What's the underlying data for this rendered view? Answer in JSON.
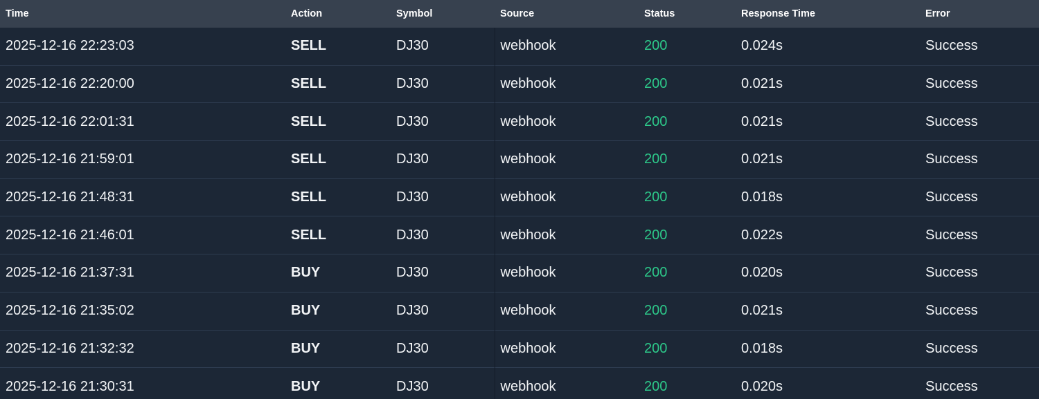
{
  "table": {
    "columns": [
      {
        "key": "time",
        "label": "Time"
      },
      {
        "key": "action",
        "label": "Action"
      },
      {
        "key": "symbol",
        "label": "Symbol"
      },
      {
        "key": "source",
        "label": "Source"
      },
      {
        "key": "status",
        "label": "Status"
      },
      {
        "key": "response_time",
        "label": "Response Time"
      },
      {
        "key": "error",
        "label": "Error"
      }
    ],
    "rows": [
      {
        "time": "2025-12-16 22:23:03",
        "action": "SELL",
        "symbol": "DJ30",
        "source": "webhook",
        "status": "200",
        "response_time": "0.024s",
        "error": "Success"
      },
      {
        "time": "2025-12-16 22:20:00",
        "action": "SELL",
        "symbol": "DJ30",
        "source": "webhook",
        "status": "200",
        "response_time": "0.021s",
        "error": "Success"
      },
      {
        "time": "2025-12-16 22:01:31",
        "action": "SELL",
        "symbol": "DJ30",
        "source": "webhook",
        "status": "200",
        "response_time": "0.021s",
        "error": "Success"
      },
      {
        "time": "2025-12-16 21:59:01",
        "action": "SELL",
        "symbol": "DJ30",
        "source": "webhook",
        "status": "200",
        "response_time": "0.021s",
        "error": "Success"
      },
      {
        "time": "2025-12-16 21:48:31",
        "action": "SELL",
        "symbol": "DJ30",
        "source": "webhook",
        "status": "200",
        "response_time": "0.018s",
        "error": "Success"
      },
      {
        "time": "2025-12-16 21:46:01",
        "action": "SELL",
        "symbol": "DJ30",
        "source": "webhook",
        "status": "200",
        "response_time": "0.022s",
        "error": "Success"
      },
      {
        "time": "2025-12-16 21:37:31",
        "action": "BUY",
        "symbol": "DJ30",
        "source": "webhook",
        "status": "200",
        "response_time": "0.020s",
        "error": "Success"
      },
      {
        "time": "2025-12-16 21:35:02",
        "action": "BUY",
        "symbol": "DJ30",
        "source": "webhook",
        "status": "200",
        "response_time": "0.021s",
        "error": "Success"
      },
      {
        "time": "2025-12-16 21:32:32",
        "action": "BUY",
        "symbol": "DJ30",
        "source": "webhook",
        "status": "200",
        "response_time": "0.018s",
        "error": "Success"
      },
      {
        "time": "2025-12-16 21:30:31",
        "action": "BUY",
        "symbol": "DJ30",
        "source": "webhook",
        "status": "200",
        "response_time": "0.020s",
        "error": "Success"
      }
    ],
    "colors": {
      "status_success_text": "#2dc98a",
      "header_bg": "#37414f",
      "row_bg": "#1c2736",
      "row_separator": "#2e3c50",
      "column_divider": "#121b28"
    }
  }
}
